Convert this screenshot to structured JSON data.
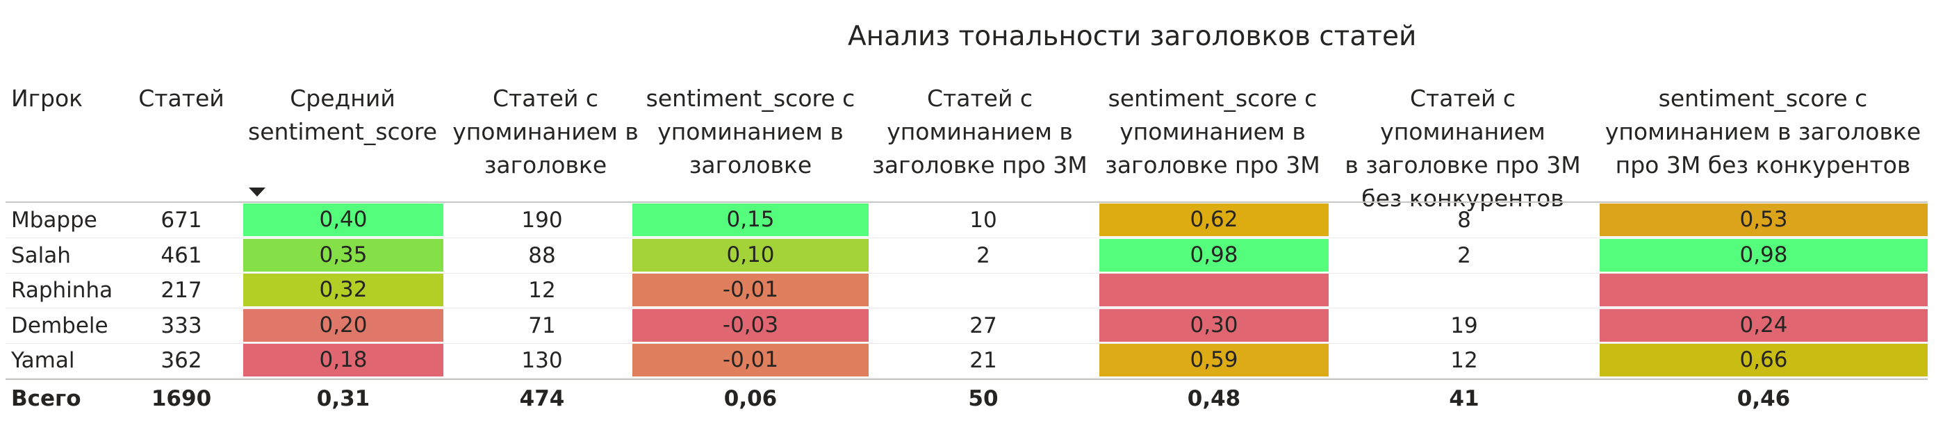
{
  "title": "Анализ тональности заголовков статей",
  "headers": [
    "Игрок",
    "Статей",
    "Средний\nsentiment_score",
    "Статей с\nупоминанием в\nзаголовке",
    "sentiment_score с\nупоминанием в\nзаголовке",
    "Статей с\nупоминанием в\nзаголовке про 3M",
    "sentiment_score с\nупоминанием в\nзаголовке про 3M",
    "Статей с упоминанием\nв заголовке про 3M\nбез конкурентов",
    "sentiment_score с\nупоминанием в заголовке\nпро 3M без конкурентов"
  ],
  "sort_icon": "sort-descending-icon",
  "rows": [
    {
      "cells": [
        "Mbappe",
        "671",
        "0,40",
        "190",
        "0,15",
        "10",
        "0,62",
        "8",
        "0,53"
      ],
      "colors": [
        "",
        "",
        "#55fd7d",
        "",
        "#55fd7d",
        "",
        "#dcac10",
        "",
        "#dca41a"
      ]
    },
    {
      "cells": [
        "Salah",
        "461",
        "0,35",
        "88",
        "0,10",
        "2",
        "0,98",
        "2",
        "0,98"
      ],
      "colors": [
        "",
        "",
        "#85e047",
        "",
        "#a3d338",
        "",
        "#55fd7d",
        "",
        "#55fd7d"
      ]
    },
    {
      "cells": [
        "Raphinha",
        "217",
        "0,32",
        "12",
        "-0,01",
        "",
        "",
        "",
        ""
      ],
      "colors": [
        "",
        "",
        "#b3cf26",
        "",
        "#e07f5d",
        "",
        "#e06771",
        "",
        "#e06771"
      ]
    },
    {
      "cells": [
        "Dembele",
        "333",
        "0,20",
        "71",
        "-0,03",
        "27",
        "0,30",
        "19",
        "0,24"
      ],
      "colors": [
        "",
        "",
        "#e0786a",
        "",
        "#e06771",
        "",
        "#e06771",
        "",
        "#e06771"
      ]
    },
    {
      "cells": [
        "Yamal",
        "362",
        "0,18",
        "130",
        "-0,01",
        "21",
        "0,59",
        "12",
        "0,66"
      ],
      "colors": [
        "",
        "",
        "#e06771",
        "",
        "#e07f5d",
        "",
        "#dcab15",
        "",
        "#c9bd14"
      ]
    }
  ],
  "total": [
    "Всего",
    "1690",
    "0,31",
    "474",
    "0,06",
    "50",
    "0,48",
    "41",
    "0,46"
  ]
}
